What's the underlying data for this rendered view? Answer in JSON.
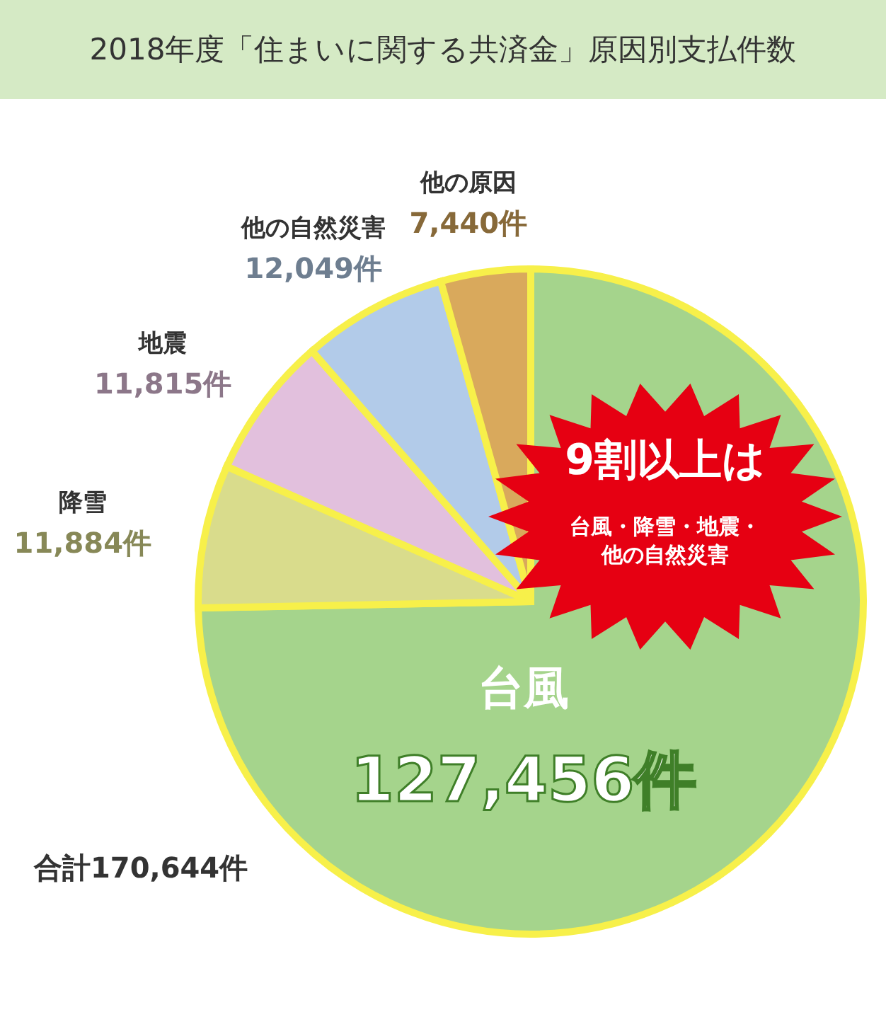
{
  "chart_data": {
    "type": "pie",
    "title": "2018年度「住まいに関する共済金」原因別支払件数",
    "categories": [
      "台風",
      "降雪",
      "地震",
      "他の自然災害",
      "他の原因"
    ],
    "values": [
      127456,
      11884,
      11815,
      12049,
      7440
    ],
    "colors": [
      "#a5d48c",
      "#d9dc8c",
      "#e2c0dd",
      "#b2cbe9",
      "#d9a95c"
    ],
    "value_labels": [
      "127,456件",
      "11,884件",
      "11,815件",
      "12,049件",
      "7,440件"
    ],
    "annotations": [
      "合計170,644件",
      "9割以上は",
      "台風・降雪・地震・他の自然災害"
    ]
  }
}
